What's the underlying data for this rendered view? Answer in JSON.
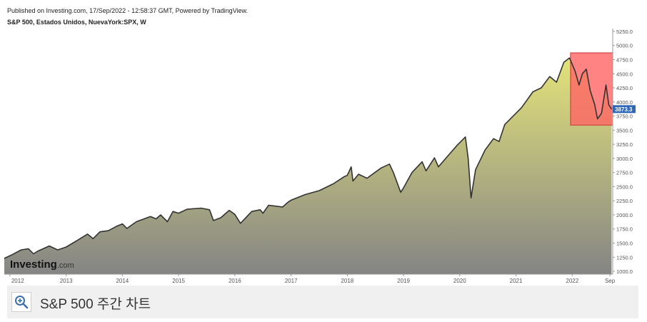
{
  "header": {
    "published": "Published on Investing.com, 17/Sep/2022 - 12:58:37 GMT, Powered by TradingView.",
    "series_title": "S&P 500, Estados Unidos, NuevaYork:SPX, W"
  },
  "watermark": {
    "brand": "Investing",
    "suffix": ".com"
  },
  "caption": {
    "text": "S&P 500 주간 차트",
    "zoom_icon": "zoom-in-icon"
  },
  "colors": {
    "line": "#333333",
    "area_top": "#e3e27a",
    "area_bottom": "#858585",
    "highlight_fill": "#ff6464",
    "highlight_border": "#cc3333",
    "last_price_bg": "#2f67b8"
  },
  "chart_data": {
    "type": "area",
    "title": "S&P 500, Estados Unidos, NuevaYork:SPX, W",
    "x_tick_labels": [
      "2012",
      "2013",
      "2014",
      "2015",
      "2016",
      "2017",
      "2018",
      "2019",
      "2020",
      "2021",
      "2022",
      "Sep"
    ],
    "x_tick_years": [
      2012,
      2013,
      2014,
      2015,
      2016,
      2017,
      2018,
      2019,
      2020,
      2021,
      2022,
      2022.67
    ],
    "y_ticks": [
      1000,
      1250,
      1500,
      1750,
      2000,
      2250,
      2500,
      2750,
      3000,
      3250,
      3500,
      3750,
      4000,
      4250,
      4500,
      4750,
      5000,
      5250
    ],
    "y_tick_labels": [
      "1000.0",
      "1250.0",
      "1500.0",
      "1750.0",
      "2000.0",
      "2250.0",
      "2500.0",
      "2750.0",
      "3000.0",
      "3250.0",
      "3500.0",
      "3750.0",
      "4000.0",
      "4250.0",
      "4500.0",
      "4750.0",
      "5000.0",
      "5250.0"
    ],
    "ylim": [
      950,
      5300
    ],
    "xlim": [
      2011.9,
      2022.72
    ],
    "last_price": 3873.3,
    "last_price_label": "3873.3",
    "highlight_box": {
      "x_start": 2021.97,
      "x_end": 2022.72,
      "y_low": 3590,
      "y_high": 4870
    },
    "series": [
      {
        "values": [
          [
            2011.9,
            1230
          ],
          [
            2012.05,
            1300
          ],
          [
            2012.2,
            1380
          ],
          [
            2012.33,
            1400
          ],
          [
            2012.42,
            1310
          ],
          [
            2012.5,
            1360
          ],
          [
            2012.7,
            1450
          ],
          [
            2012.85,
            1380
          ],
          [
            2013.0,
            1430
          ],
          [
            2013.2,
            1550
          ],
          [
            2013.38,
            1660
          ],
          [
            2013.48,
            1580
          ],
          [
            2013.6,
            1700
          ],
          [
            2013.75,
            1720
          ],
          [
            2013.9,
            1800
          ],
          [
            2014.0,
            1840
          ],
          [
            2014.08,
            1760
          ],
          [
            2014.25,
            1880
          ],
          [
            2014.5,
            1970
          ],
          [
            2014.6,
            1930
          ],
          [
            2014.68,
            2000
          ],
          [
            2014.8,
            1880
          ],
          [
            2014.9,
            2060
          ],
          [
            2015.0,
            2030
          ],
          [
            2015.15,
            2100
          ],
          [
            2015.4,
            2120
          ],
          [
            2015.55,
            2090
          ],
          [
            2015.62,
            1900
          ],
          [
            2015.75,
            1950
          ],
          [
            2015.9,
            2080
          ],
          [
            2016.0,
            2010
          ],
          [
            2016.1,
            1850
          ],
          [
            2016.3,
            2060
          ],
          [
            2016.45,
            2090
          ],
          [
            2016.5,
            2030
          ],
          [
            2016.6,
            2170
          ],
          [
            2016.85,
            2140
          ],
          [
            2016.95,
            2230
          ],
          [
            2017.0,
            2260
          ],
          [
            2017.25,
            2360
          ],
          [
            2017.5,
            2430
          ],
          [
            2017.75,
            2550
          ],
          [
            2017.95,
            2680
          ],
          [
            2018.0,
            2700
          ],
          [
            2018.07,
            2850
          ],
          [
            2018.1,
            2600
          ],
          [
            2018.2,
            2720
          ],
          [
            2018.35,
            2650
          ],
          [
            2018.6,
            2830
          ],
          [
            2018.75,
            2900
          ],
          [
            2018.82,
            2750
          ],
          [
            2018.95,
            2400
          ],
          [
            2019.0,
            2480
          ],
          [
            2019.15,
            2750
          ],
          [
            2019.33,
            2940
          ],
          [
            2019.4,
            2780
          ],
          [
            2019.55,
            3010
          ],
          [
            2019.62,
            2850
          ],
          [
            2019.75,
            3000
          ],
          [
            2019.95,
            3230
          ],
          [
            2020.1,
            3380
          ],
          [
            2020.15,
            3000
          ],
          [
            2020.2,
            2300
          ],
          [
            2020.28,
            2800
          ],
          [
            2020.45,
            3150
          ],
          [
            2020.6,
            3350
          ],
          [
            2020.7,
            3300
          ],
          [
            2020.8,
            3600
          ],
          [
            2020.95,
            3750
          ],
          [
            2021.1,
            3900
          ],
          [
            2021.3,
            4180
          ],
          [
            2021.45,
            4250
          ],
          [
            2021.6,
            4450
          ],
          [
            2021.72,
            4350
          ],
          [
            2021.85,
            4700
          ],
          [
            2021.95,
            4780
          ],
          [
            2022.05,
            4550
          ],
          [
            2022.12,
            4300
          ],
          [
            2022.18,
            4500
          ],
          [
            2022.25,
            4580
          ],
          [
            2022.32,
            4200
          ],
          [
            2022.4,
            3950
          ],
          [
            2022.45,
            3700
          ],
          [
            2022.52,
            3800
          ],
          [
            2022.6,
            4300
          ],
          [
            2022.65,
            3950
          ],
          [
            2022.7,
            3873
          ]
        ]
      }
    ]
  }
}
